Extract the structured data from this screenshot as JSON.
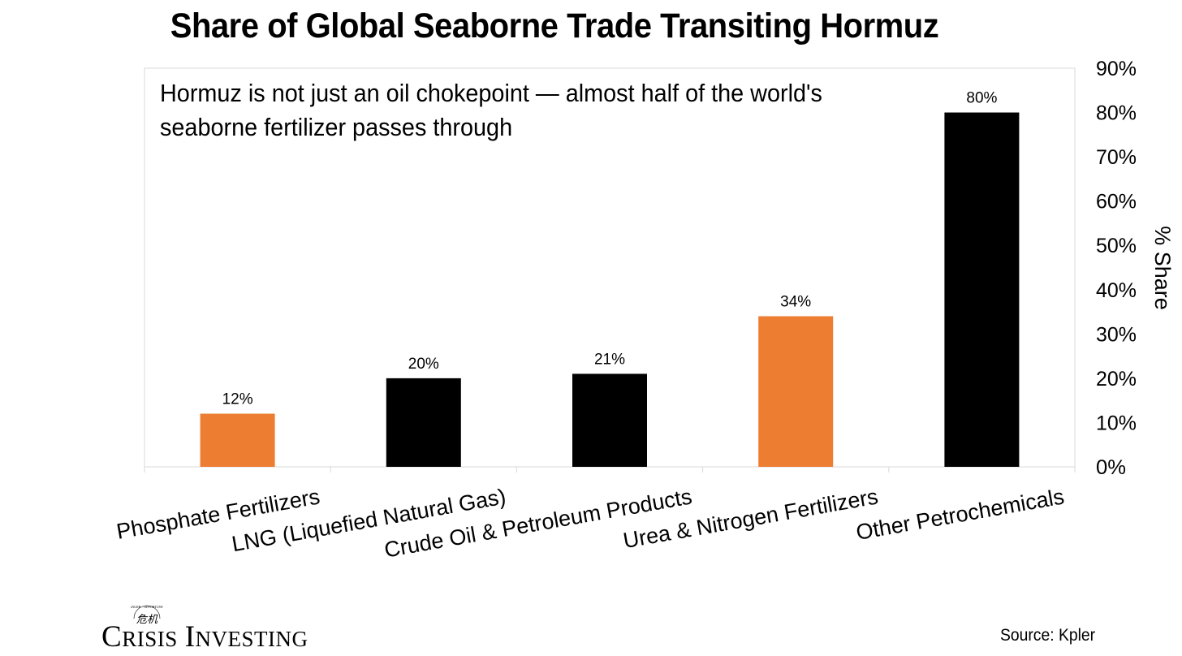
{
  "chart_data": {
    "type": "bar",
    "title": "Share of Global Seaborne Trade Transiting Hormuz",
    "annotation": "Hormuz is not just an oil chokepoint — almost half of the world's seaborne fertilizer passes through",
    "annotation_lines": [
      "Hormuz is not just an oil chokepoint — almost half of the world's",
      "seaborne fertilizer passes through"
    ],
    "categories": [
      "Phosphate Fertilizers",
      "LNG (Liquefied Natural Gas)",
      "Crude Oil & Petroleum Products",
      "Urea & Nitrogen Fertilizers",
      "Other Petrochemicals"
    ],
    "values": [
      12,
      20,
      21,
      34,
      80
    ],
    "data_labels": [
      "12%",
      "20%",
      "21%",
      "34%",
      "80%"
    ],
    "bar_colors": [
      "#ED7D31",
      "#000000",
      "#000000",
      "#ED7D31",
      "#000000"
    ],
    "ylabel": "% Share",
    "y_axis_position": "right",
    "ylim": [
      0,
      90
    ],
    "yticks": [
      0,
      10,
      20,
      30,
      40,
      50,
      60,
      70,
      80,
      90
    ],
    "ytick_labels": [
      "0%",
      "10%",
      "20%",
      "30%",
      "40%",
      "50%",
      "60%",
      "70%",
      "80%",
      "90%"
    ],
    "grid": false,
    "legend": "none"
  },
  "colors": {
    "highlight": "#ED7D31",
    "default_bar": "#000000",
    "axis": "#D9D9D9"
  },
  "footer": {
    "brand_name": "Crisis Investing",
    "brand_seal_text": "DANGER · OPPORTUNITY",
    "brand_seal_glyphs": "危机",
    "source": "Source: Kpler"
  }
}
